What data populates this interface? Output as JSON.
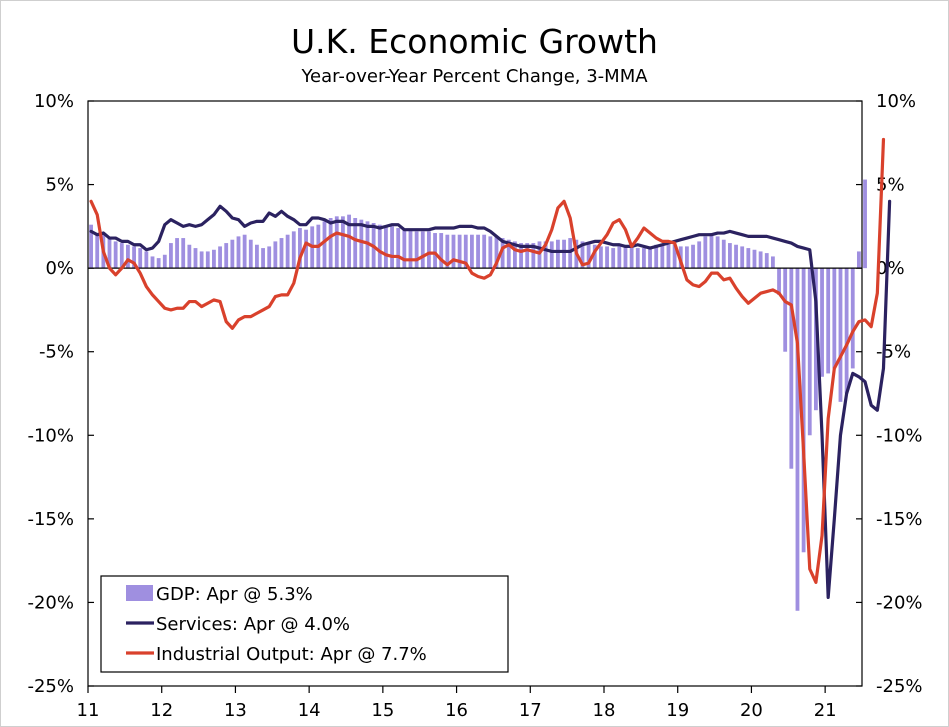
{
  "chart_data": {
    "type": "bar+line",
    "title": "U.K. Economic Growth",
    "subtitle": "Year-over-Year Percent Change, 3-MMA",
    "ylim": [
      -25,
      10
    ],
    "y_ticks": [
      10,
      5,
      0,
      -5,
      -10,
      -15,
      -20,
      -25
    ],
    "y_tick_labels": [
      "10%",
      "5%",
      "0%",
      "-5%",
      "-10%",
      "-15%",
      "-20%",
      "-25%"
    ],
    "x_range": [
      2011.0,
      2021.5
    ],
    "x_ticks": [
      2011,
      2012,
      2013,
      2014,
      2015,
      2016,
      2017,
      2018,
      2019,
      2020,
      2021
    ],
    "x_tick_labels": [
      "11",
      "12",
      "13",
      "14",
      "15",
      "16",
      "17",
      "18",
      "19",
      "20",
      "21"
    ],
    "colors": {
      "gdp": "#9f8fe0",
      "services": "#2b2260",
      "industrial": "#d9412c",
      "axis": "#000000"
    },
    "legend": [
      {
        "key": "gdp",
        "label": "GDP: Apr @ 5.3%"
      },
      {
        "key": "services",
        "label": "Services: Apr @ 4.0%"
      },
      {
        "key": "industrial",
        "label": "Industrial Output: Apr @ 7.7%"
      }
    ],
    "series": [
      {
        "name": "GDP",
        "key": "gdp",
        "kind": "bar",
        "start": 2011.0,
        "step": 0.08333,
        "values": [
          2.6,
          2.1,
          2.0,
          1.8,
          1.6,
          1.5,
          1.4,
          1.3,
          1.2,
          1.0,
          0.7,
          0.6,
          0.8,
          1.5,
          1.8,
          1.8,
          1.4,
          1.2,
          1.0,
          1.0,
          1.1,
          1.3,
          1.5,
          1.7,
          1.9,
          2.0,
          1.7,
          1.4,
          1.2,
          1.3,
          1.6,
          1.8,
          2.0,
          2.2,
          2.4,
          2.3,
          2.5,
          2.6,
          2.8,
          3.0,
          3.1,
          3.1,
          3.2,
          3.0,
          2.9,
          2.8,
          2.7,
          2.6,
          2.5,
          2.5,
          2.4,
          2.3,
          2.3,
          2.2,
          2.2,
          2.2,
          2.1,
          2.1,
          2.0,
          2.0,
          2.0,
          2.0,
          2.0,
          2.0,
          2.0,
          1.9,
          1.9,
          1.8,
          1.7,
          1.6,
          1.5,
          1.5,
          1.5,
          1.6,
          1.6,
          1.6,
          1.7,
          1.7,
          1.8,
          1.7,
          1.6,
          1.5,
          1.4,
          1.3,
          1.3,
          1.2,
          1.3,
          1.3,
          1.3,
          1.2,
          1.2,
          1.3,
          1.4,
          1.4,
          1.4,
          1.4,
          1.3,
          1.3,
          1.4,
          1.6,
          1.9,
          2.1,
          1.9,
          1.7,
          1.5,
          1.4,
          1.3,
          1.2,
          1.1,
          1.0,
          0.9,
          0.7,
          -1.6,
          -5.0,
          -12.0,
          -20.5,
          -17.0,
          -10.0,
          -8.5,
          -6.5,
          -6.3,
          -6.0,
          -8.0,
          -7.5,
          -6.0,
          1.0,
          5.3
        ]
      },
      {
        "name": "Services",
        "key": "services",
        "kind": "line",
        "start": 2011.0,
        "step": 0.08333,
        "values": [
          2.2,
          2.0,
          2.1,
          1.8,
          1.8,
          1.6,
          1.6,
          1.4,
          1.4,
          1.1,
          1.2,
          1.6,
          2.6,
          2.9,
          2.7,
          2.5,
          2.6,
          2.5,
          2.6,
          2.9,
          3.2,
          3.7,
          3.4,
          3.0,
          2.9,
          2.5,
          2.7,
          2.8,
          2.8,
          3.3,
          3.1,
          3.4,
          3.1,
          2.9,
          2.6,
          2.6,
          3.0,
          3.0,
          2.9,
          2.7,
          2.8,
          2.8,
          2.6,
          2.6,
          2.6,
          2.5,
          2.5,
          2.4,
          2.5,
          2.6,
          2.6,
          2.3,
          2.3,
          2.3,
          2.3,
          2.3,
          2.4,
          2.4,
          2.4,
          2.4,
          2.5,
          2.5,
          2.5,
          2.4,
          2.4,
          2.2,
          1.9,
          1.6,
          1.5,
          1.4,
          1.3,
          1.3,
          1.3,
          1.2,
          1.1,
          1.0,
          1.0,
          1.0,
          1.0,
          1.2,
          1.4,
          1.5,
          1.6,
          1.6,
          1.5,
          1.4,
          1.4,
          1.3,
          1.3,
          1.4,
          1.3,
          1.2,
          1.3,
          1.4,
          1.5,
          1.6,
          1.7,
          1.8,
          1.9,
          2.0,
          2.0,
          2.0,
          2.1,
          2.1,
          2.2,
          2.1,
          2.0,
          1.9,
          1.9,
          1.9,
          1.9,
          1.8,
          1.7,
          1.6,
          1.5,
          1.3,
          1.2,
          1.1,
          -2.0,
          -10.0,
          -19.7,
          -15.0,
          -10.0,
          -7.5,
          -6.3,
          -6.5,
          -6.8,
          -8.2,
          -8.5,
          -6.0,
          4.0
        ]
      },
      {
        "name": "Industrial Output",
        "key": "industrial",
        "kind": "line",
        "start": 2011.0,
        "step": 0.08333,
        "values": [
          4.0,
          3.2,
          1.0,
          0.0,
          -0.4,
          0.0,
          0.5,
          0.3,
          -0.3,
          -1.1,
          -1.6,
          -2.0,
          -2.4,
          -2.5,
          -2.4,
          -2.4,
          -2.0,
          -2.0,
          -2.3,
          -2.1,
          -1.9,
          -2.0,
          -3.2,
          -3.6,
          -3.1,
          -2.9,
          -2.9,
          -2.7,
          -2.5,
          -2.3,
          -1.7,
          -1.6,
          -1.6,
          -0.9,
          0.6,
          1.5,
          1.3,
          1.3,
          1.6,
          1.9,
          2.1,
          2.0,
          1.9,
          1.7,
          1.6,
          1.5,
          1.3,
          1.0,
          0.8,
          0.7,
          0.7,
          0.5,
          0.5,
          0.5,
          0.7,
          0.9,
          0.9,
          0.5,
          0.2,
          0.5,
          0.4,
          0.3,
          -0.3,
          -0.5,
          -0.6,
          -0.4,
          0.3,
          1.2,
          1.4,
          1.1,
          1.0,
          1.1,
          1.0,
          0.9,
          1.4,
          2.3,
          3.6,
          4.0,
          3.0,
          0.9,
          0.2,
          0.3,
          1.0,
          1.5,
          2.0,
          2.7,
          2.9,
          2.3,
          1.3,
          1.8,
          2.4,
          2.1,
          1.8,
          1.6,
          1.6,
          1.5,
          0.4,
          -0.7,
          -1.0,
          -1.1,
          -0.8,
          -0.3,
          -0.3,
          -0.7,
          -0.6,
          -1.2,
          -1.7,
          -2.1,
          -1.8,
          -1.5,
          -1.4,
          -1.3,
          -1.5,
          -2.0,
          -2.2,
          -4.5,
          -11.0,
          -18.0,
          -18.8,
          -16.0,
          -9.0,
          -6.0,
          -5.3,
          -4.6,
          -3.8,
          -3.2,
          -3.1,
          -3.5,
          -1.5,
          7.7
        ]
      }
    ]
  }
}
